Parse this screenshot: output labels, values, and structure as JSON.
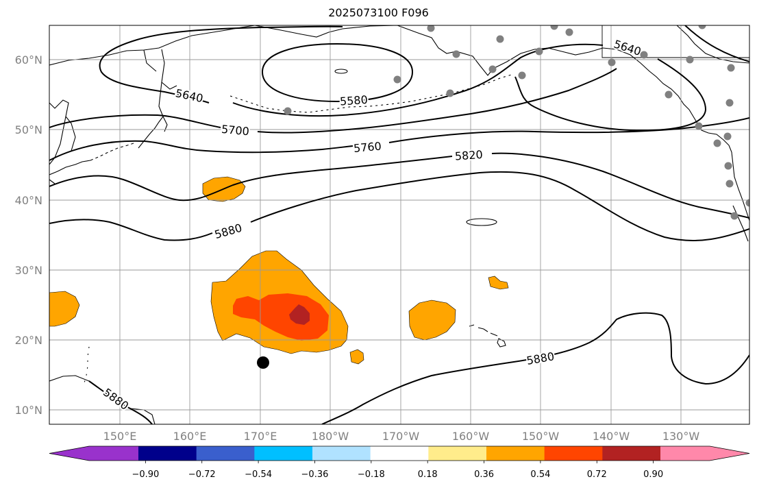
{
  "title": "2025073100 F096",
  "lat_labels": [
    "60°N",
    "50°N",
    "40°N",
    "30°N",
    "20°N",
    "10°N"
  ],
  "lon_labels": [
    "150°E",
    "160°E",
    "170°E",
    "180°W",
    "170°W",
    "160°W",
    "150°W",
    "140°W",
    "130°W"
  ],
  "contour_labels": [
    "5580",
    "5640",
    "5640",
    "5700",
    "5760",
    "5820",
    "5880",
    "5880",
    "5880"
  ],
  "colorbar": {
    "ticks": [
      "−0.90",
      "−0.72",
      "−0.54",
      "−0.36",
      "−0.18",
      "0.18",
      "0.36",
      "0.54",
      "0.72",
      "0.90"
    ],
    "colors": [
      "#9932cc",
      "#00008b",
      "#3a5fcd",
      "#00bfff",
      "#b0e2ff",
      "#ffffff",
      "#ffec8b",
      "#ffa500",
      "#ff4500",
      "#b22222",
      "#ff88aa"
    ]
  },
  "colors": {
    "orange": "#ffa500",
    "orange_red": "#ff4500",
    "dark_red": "#b22222",
    "station_gray": "#808080"
  }
}
